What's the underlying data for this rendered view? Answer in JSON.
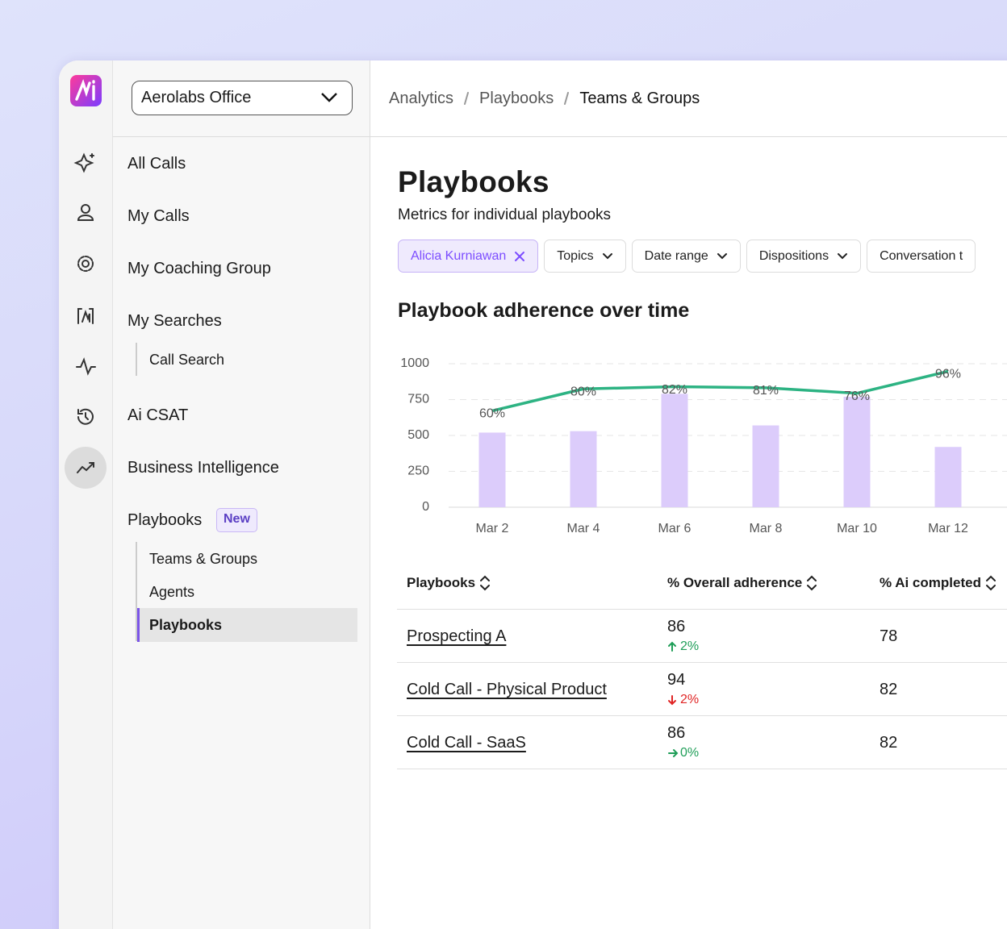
{
  "workspace": "Aerolabs Office",
  "breadcrumb": [
    "Analytics",
    "Playbooks",
    "Teams & Groups"
  ],
  "nav": {
    "items": [
      {
        "label": "All Calls"
      },
      {
        "label": "My Calls"
      },
      {
        "label": "My Coaching Group"
      },
      {
        "label": "My Searches",
        "children": [
          "Call Search"
        ]
      },
      {
        "label": "Ai CSAT"
      },
      {
        "label": "Business Intelligence"
      },
      {
        "label": "Playbooks",
        "badge": "New",
        "children": [
          "Teams & Groups",
          "Agents",
          "Playbooks"
        ],
        "active_child": 2
      }
    ]
  },
  "page": {
    "title": "Playbooks",
    "subtitle": "Metrics for individual playbooks"
  },
  "filters": [
    {
      "label": "Alicia Kurniawan",
      "selected": true
    },
    {
      "label": "Topics"
    },
    {
      "label": "Date range"
    },
    {
      "label": "Dispositions"
    },
    {
      "label": "Conversation t"
    }
  ],
  "chart_data": {
    "type": "bar",
    "title": "Playbook adherence over time",
    "categories": [
      "Mar 2",
      "Mar 4",
      "Mar 6",
      "Mar 8",
      "Mar 10",
      "Mar 12"
    ],
    "series": [
      {
        "type": "bar",
        "color": "#dcccfb",
        "values": [
          520,
          530,
          790,
          570,
          770,
          420
        ]
      },
      {
        "type": "line",
        "color": "#2db383",
        "axis": "y2",
        "values": [
          60,
          80,
          82,
          81,
          76,
          96
        ],
        "value_labels": [
          "60%",
          "80%",
          "82%",
          "81%",
          "76%",
          "96%"
        ]
      }
    ],
    "ylim": [
      0,
      1000
    ],
    "yticks": [
      0,
      250,
      500,
      750,
      1000
    ],
    "y2lim": [
      -28,
      103
    ],
    "grid": true
  },
  "table": {
    "columns": [
      "Playbooks",
      "% Overall adherence",
      "% Ai completed"
    ],
    "rows": [
      {
        "name": "Prospecting A",
        "adherence": 86,
        "change": "2%",
        "direction": "up",
        "ai": 78
      },
      {
        "name": "Cold Call - Physical Product",
        "adherence": 94,
        "change": "2%",
        "direction": "down",
        "ai": 82
      },
      {
        "name": "Cold Call - SaaS",
        "adherence": 86,
        "change": "0%",
        "direction": "flat",
        "ai": 82
      }
    ]
  }
}
